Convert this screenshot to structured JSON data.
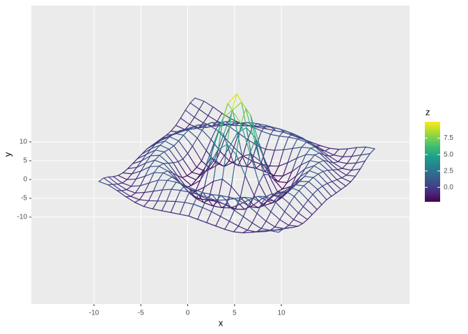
{
  "chart_data": {
    "type": "wireframe",
    "x_label": "x",
    "y_label": "y",
    "legend_title": "z",
    "x": [
      -10,
      -9,
      -8,
      -7,
      -6,
      -5,
      -4,
      -3,
      -2,
      -1,
      0,
      1,
      2,
      3,
      4,
      5,
      6,
      7,
      8,
      9,
      10
    ],
    "y": [
      -10,
      -9,
      -8,
      -7,
      -6,
      -5,
      -4,
      -3,
      -2,
      -1,
      0,
      1,
      2,
      3,
      4,
      5,
      6,
      7,
      8,
      9,
      10
    ],
    "z": [
      [
        0.7,
        0.6,
        0.2,
        -0.3,
        -0.7,
        -0.9,
        -0.9,
        -0.8,
        -0.7,
        -0.6,
        -0.5,
        -0.6,
        -0.7,
        -0.8,
        -0.9,
        -0.9,
        -0.7,
        -0.3,
        0.2,
        0.6,
        0.7
      ],
      [
        0.6,
        0.1,
        -0.4,
        -0.8,
        -0.9,
        -0.7,
        -0.4,
        -0.1,
        0.2,
        0.4,
        0.5,
        0.4,
        0.2,
        -0.1,
        -0.4,
        -0.7,
        -0.9,
        -0.8,
        -0.4,
        0.1,
        0.6
      ],
      [
        0.2,
        -0.4,
        -0.8,
        -0.9,
        -0.5,
        0.0,
        0.5,
        0.9,
        1.1,
        1.2,
        1.2,
        1.2,
        1.1,
        0.9,
        0.5,
        0.0,
        -0.5,
        -0.9,
        -0.8,
        -0.4,
        0.2
      ],
      [
        -0.3,
        -0.8,
        -0.9,
        -0.5,
        0.2,
        0.9,
        1.2,
        1.3,
        1.2,
        1.0,
        0.9,
        1.0,
        1.2,
        1.3,
        1.2,
        0.9,
        0.2,
        -0.5,
        -0.9,
        -0.8,
        -0.3
      ],
      [
        -0.7,
        -0.9,
        -0.5,
        0.2,
        1.0,
        1.3,
        1.1,
        0.6,
        0.1,
        -0.3,
        -0.5,
        -0.3,
        0.1,
        0.6,
        1.1,
        1.3,
        1.0,
        0.2,
        -0.5,
        -0.9,
        -0.7
      ],
      [
        -0.9,
        -0.7,
        0.0,
        0.9,
        1.3,
        1.0,
        0.2,
        -0.7,
        -1.5,
        -1.8,
        -1.9,
        -1.8,
        -1.5,
        -0.7,
        0.2,
        1.0,
        1.3,
        0.9,
        0.0,
        -0.7,
        -0.9
      ],
      [
        -0.9,
        -0.4,
        0.5,
        1.2,
        1.1,
        0.2,
        -1.0,
        -1.9,
        -2.2,
        -2.0,
        -1.9,
        -2.0,
        -2.2,
        -1.9,
        -1.0,
        0.2,
        1.1,
        1.2,
        0.5,
        -0.4,
        -0.9
      ],
      [
        -0.8,
        -0.1,
        0.9,
        1.3,
        0.6,
        -0.7,
        -1.9,
        -2.1,
        -1.2,
        -0.1,
        0.5,
        -0.1,
        -1.2,
        -2.1,
        -1.9,
        -0.7,
        0.6,
        1.3,
        0.9,
        -0.1,
        -0.8
      ],
      [
        -0.7,
        0.2,
        1.1,
        1.2,
        0.1,
        -1.5,
        -2.2,
        -1.2,
        1.1,
        3.5,
        4.5,
        3.5,
        1.1,
        -1.2,
        -2.2,
        -1.5,
        0.1,
        1.2,
        1.1,
        0.2,
        -0.7
      ],
      [
        -0.6,
        0.4,
        1.2,
        1.0,
        -0.3,
        -1.8,
        -2.0,
        -0.1,
        3.5,
        7.0,
        8.4,
        7.0,
        3.5,
        -0.1,
        -2.0,
        -1.8,
        -0.3,
        1.0,
        1.2,
        0.4,
        -0.6
      ],
      [
        -0.5,
        0.5,
        1.2,
        0.9,
        -0.5,
        -1.9,
        -1.9,
        0.5,
        4.5,
        8.4,
        10.0,
        8.4,
        4.5,
        0.5,
        -1.9,
        -1.9,
        -0.5,
        0.9,
        1.2,
        0.5,
        -0.5
      ],
      [
        -0.6,
        0.4,
        1.2,
        1.0,
        -0.3,
        -1.8,
        -2.0,
        -0.1,
        3.5,
        7.0,
        8.4,
        7.0,
        3.5,
        -0.1,
        -2.0,
        -1.8,
        -0.3,
        1.0,
        1.2,
        0.4,
        -0.6
      ],
      [
        -0.7,
        0.2,
        1.1,
        1.2,
        0.1,
        -1.5,
        -2.2,
        -1.2,
        1.1,
        3.5,
        4.5,
        3.5,
        1.1,
        -1.2,
        -2.2,
        -1.5,
        0.1,
        1.2,
        1.1,
        0.2,
        -0.7
      ],
      [
        -0.8,
        -0.1,
        0.9,
        1.3,
        0.6,
        -0.7,
        -1.9,
        -2.1,
        -1.2,
        -0.1,
        0.5,
        -0.1,
        -1.2,
        -2.1,
        -1.9,
        -0.7,
        0.6,
        1.3,
        0.9,
        -0.1,
        -0.8
      ],
      [
        -0.9,
        -0.4,
        0.5,
        1.2,
        1.1,
        0.2,
        -1.0,
        -1.9,
        -2.2,
        -2.0,
        -1.9,
        -2.0,
        -2.2,
        -1.9,
        -1.0,
        0.2,
        1.1,
        1.2,
        0.5,
        -0.4,
        -0.9
      ],
      [
        -0.9,
        -0.7,
        0.0,
        0.9,
        1.3,
        1.0,
        0.2,
        -0.7,
        -1.5,
        -1.8,
        -1.9,
        -1.8,
        -1.5,
        -0.7,
        0.2,
        1.0,
        1.3,
        0.9,
        0.0,
        -0.7,
        -0.9
      ],
      [
        -0.7,
        -0.9,
        -0.5,
        0.2,
        1.0,
        1.3,
        1.1,
        0.6,
        0.1,
        -0.3,
        -0.5,
        -0.3,
        0.1,
        0.6,
        1.1,
        1.3,
        1.0,
        0.2,
        -0.5,
        -0.9,
        -0.7
      ],
      [
        -0.3,
        -0.8,
        -0.9,
        -0.5,
        0.2,
        0.9,
        1.2,
        1.3,
        1.2,
        1.0,
        0.9,
        1.0,
        1.2,
        1.3,
        1.2,
        0.9,
        0.2,
        -0.5,
        -0.9,
        -0.8,
        -0.3
      ],
      [
        0.2,
        -0.4,
        -0.8,
        -0.9,
        -0.5,
        0.0,
        0.5,
        0.9,
        1.1,
        1.2,
        1.2,
        1.2,
        1.1,
        0.9,
        0.5,
        0.0,
        -0.5,
        -0.9,
        -0.8,
        -0.4,
        0.2
      ],
      [
        0.6,
        0.1,
        -0.4,
        -0.8,
        -0.9,
        -0.7,
        -0.4,
        -0.1,
        0.2,
        0.4,
        0.5,
        0.4,
        0.2,
        -0.1,
        -0.4,
        -0.7,
        -0.9,
        -0.8,
        -0.4,
        0.1,
        0.6
      ],
      [
        0.7,
        0.6,
        0.2,
        -0.3,
        -0.7,
        -0.9,
        -0.9,
        -0.8,
        -0.7,
        -0.6,
        -0.5,
        -0.6,
        -0.7,
        -0.8,
        -0.9,
        -0.9,
        -0.7,
        -0.3,
        0.2,
        0.6,
        0.7
      ]
    ],
    "xticks": [
      -10,
      -5,
      0,
      5,
      10
    ],
    "yticks": [
      -10,
      -5,
      0,
      5,
      10
    ],
    "zlim": [
      -2.2,
      10
    ],
    "zticks": [
      {
        "value": 0,
        "label": "0.0"
      },
      {
        "value": 2.5,
        "label": "2.5"
      },
      {
        "value": 5,
        "label": "5.0"
      },
      {
        "value": 7.5,
        "label": "7.5"
      }
    ],
    "colors": [
      "#440154",
      "#482878",
      "#3e4989",
      "#31688e",
      "#26828e",
      "#1f9e89",
      "#35b779",
      "#6ece58",
      "#b5de2b",
      "#fde725"
    ],
    "grid": true
  }
}
